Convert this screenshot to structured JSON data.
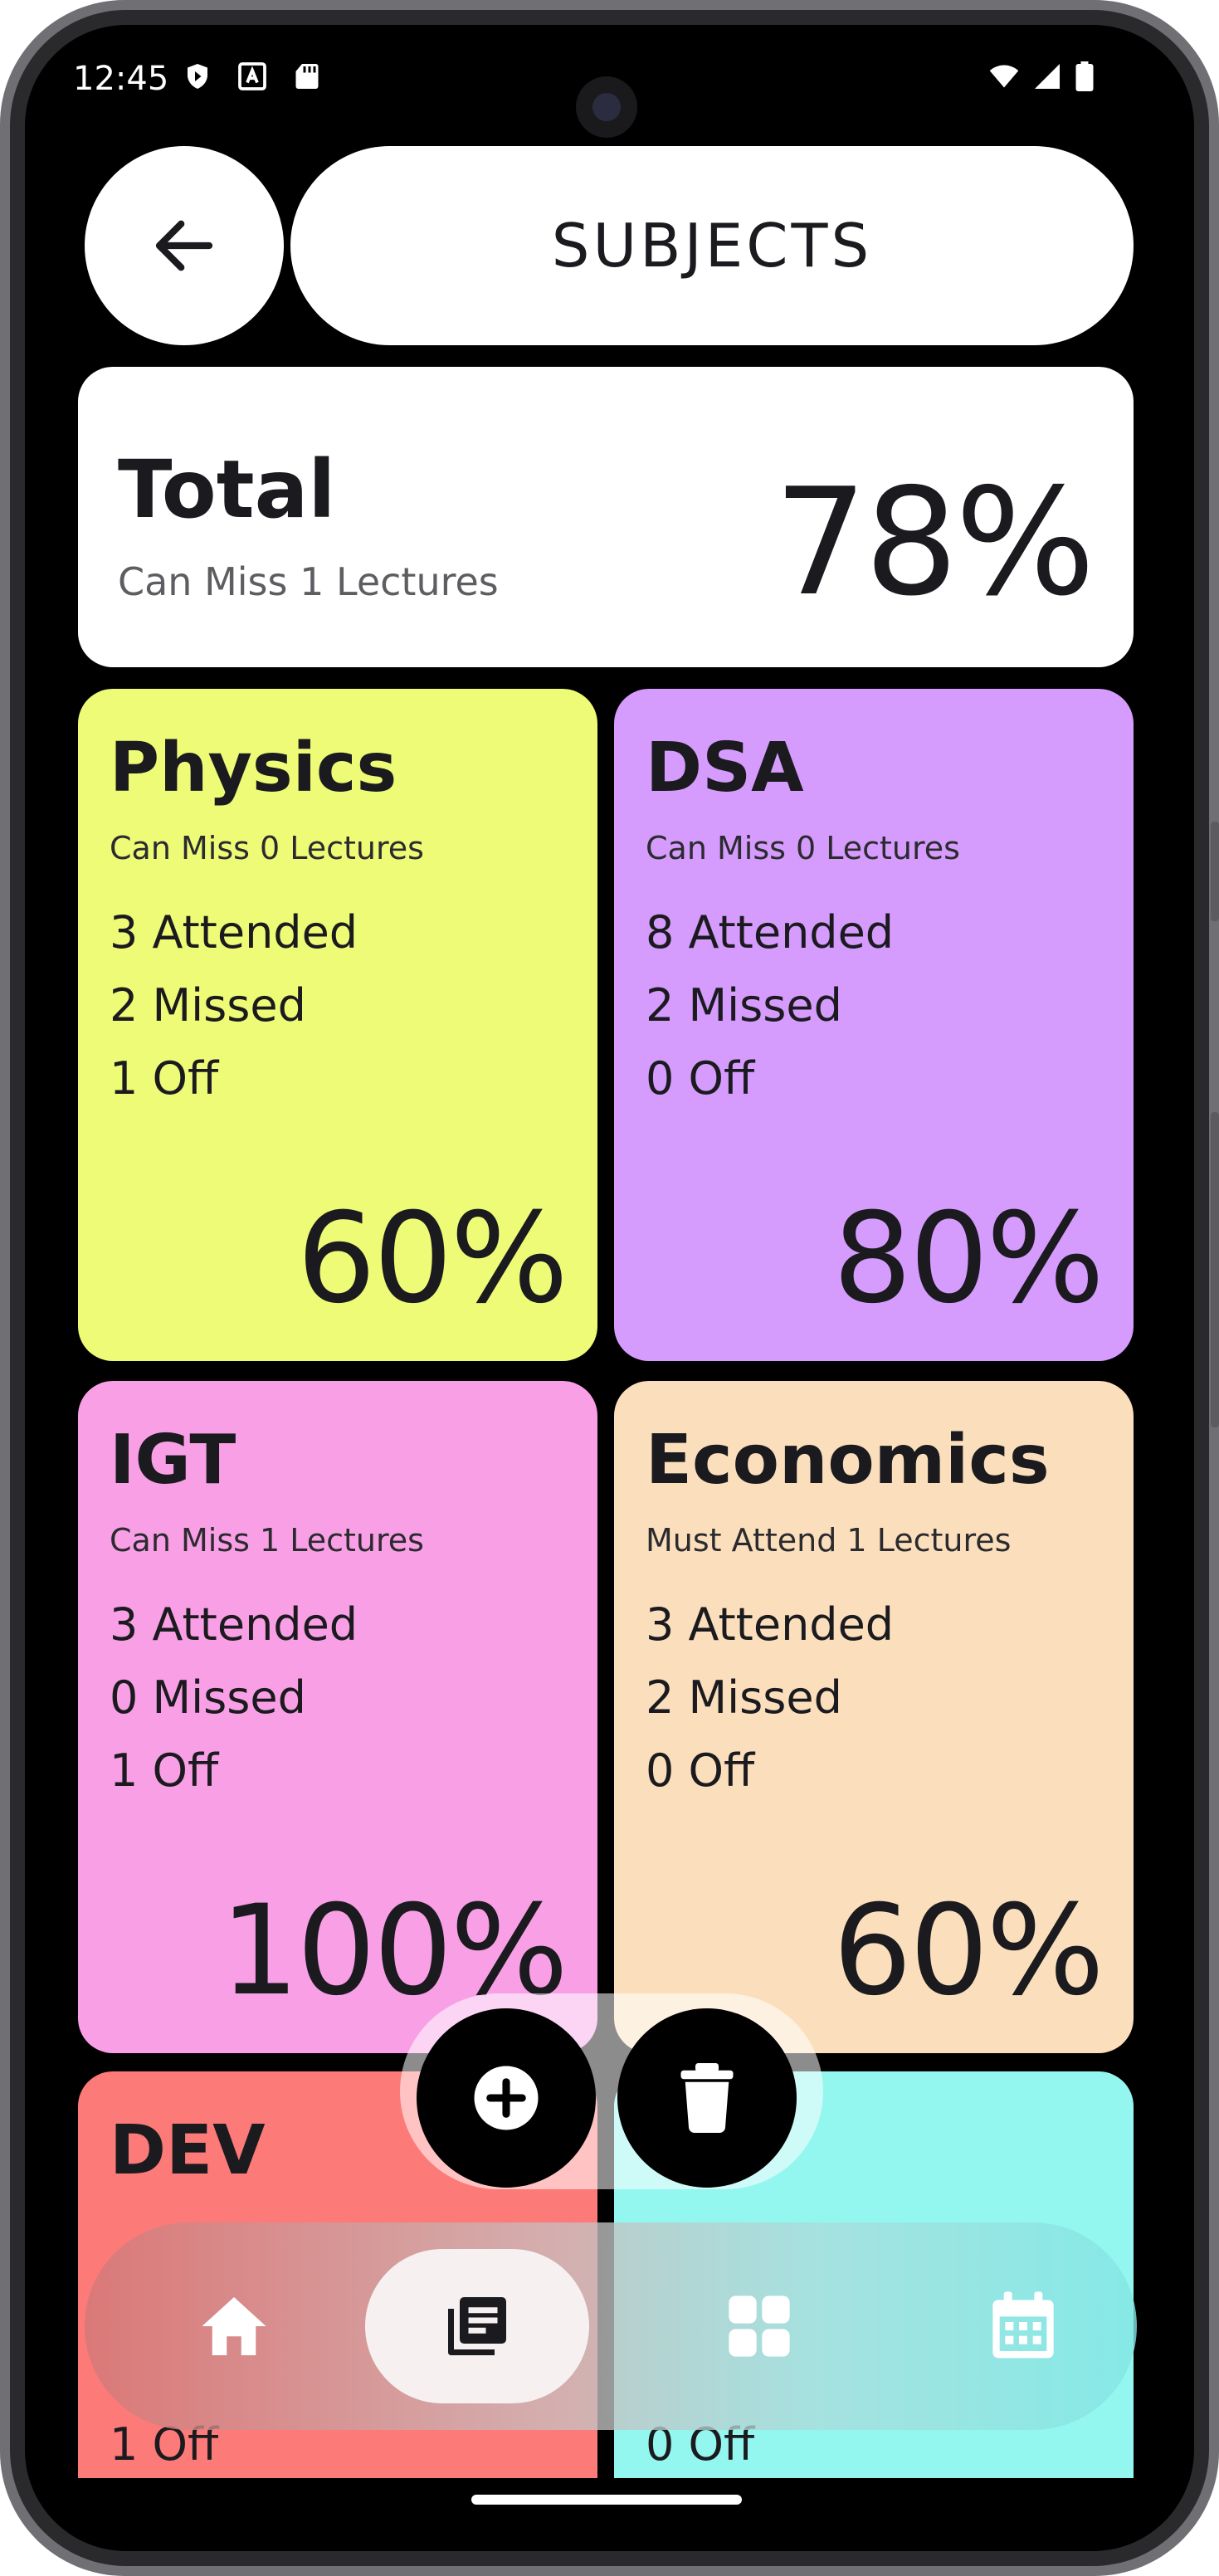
{
  "status_bar": {
    "time": "12:45"
  },
  "header": {
    "title": "SUBJECTS"
  },
  "total": {
    "title": "Total",
    "subtitle": "Can Miss 1 Lectures",
    "percent": "78%"
  },
  "subjects": [
    {
      "name": "Physics",
      "subtitle": "Can Miss 0 Lectures",
      "attended": "3 Attended",
      "missed": "2 Missed",
      "off": "1 Off",
      "percent": "60%",
      "color": "#eefb77"
    },
    {
      "name": "DSA",
      "subtitle": "Can Miss 0 Lectures",
      "attended": "8 Attended",
      "missed": "2 Missed",
      "off": "0 Off",
      "percent": "80%",
      "color": "#d59bfd"
    },
    {
      "name": "IGT",
      "subtitle": "Can Miss 1 Lectures",
      "attended": "3 Attended",
      "missed": "0 Missed",
      "off": "1 Off",
      "percent": "100%",
      "color": "#f99fe6"
    },
    {
      "name": "Economics",
      "subtitle": "Must Attend 1 Lectures",
      "attended": "3 Attended",
      "missed": "2 Missed",
      "off": "0 Off",
      "percent": "60%",
      "color": "#fbdfbc"
    },
    {
      "name": "DEV",
      "subtitle": "",
      "attended": "",
      "missed": "",
      "off": "1 Off",
      "percent": "",
      "color": "#fc7a78"
    },
    {
      "name": "",
      "subtitle": "",
      "attended": "",
      "missed": "",
      "off": "0 Off",
      "percent": "",
      "color": "#93f7ef"
    }
  ],
  "fab": {
    "add_icon": "plus-circle-icon",
    "delete_icon": "trash-icon"
  },
  "nav": {
    "items": [
      "home-icon",
      "subjects-icon",
      "dashboard-icon",
      "calendar-icon"
    ],
    "active": 1
  },
  "colors": {
    "background": "#000000",
    "surface": "#ffffff",
    "text": "#1b1b1f"
  }
}
